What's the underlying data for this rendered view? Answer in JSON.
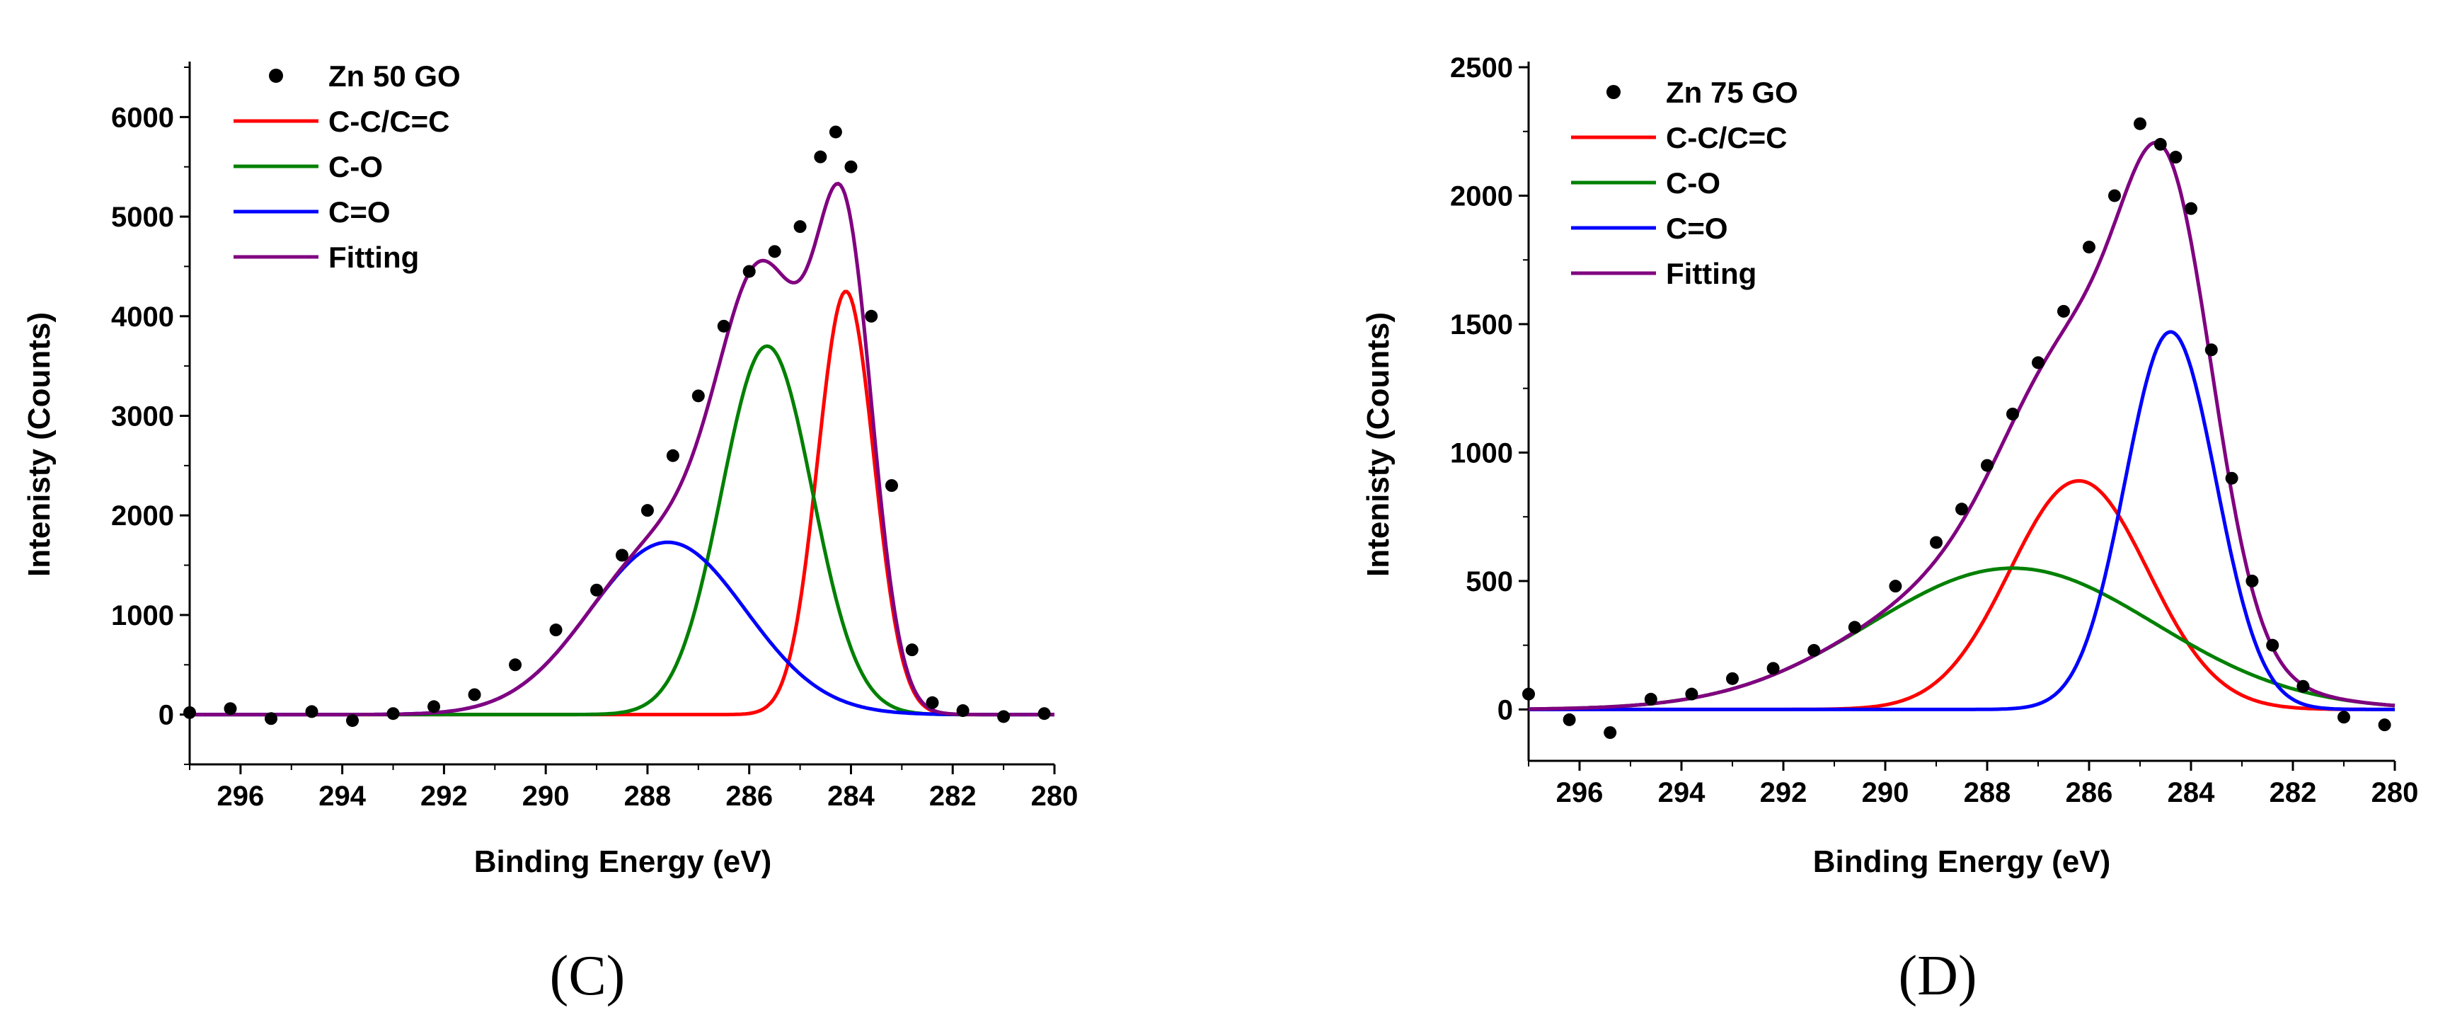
{
  "chart_data": [
    {
      "type": "line",
      "panel_label": "(C)",
      "title": "",
      "xlabel": "Binding Energy (eV)",
      "ylabel": "Intenisty (Counts)",
      "xlim": [
        297,
        280
      ],
      "ylim": [
        -500,
        6500
      ],
      "x_ticks": [
        296,
        294,
        292,
        290,
        288,
        286,
        284,
        282,
        280
      ],
      "y_ticks": [
        0,
        1000,
        2000,
        3000,
        4000,
        5000,
        6000
      ],
      "legend_position": "top-left",
      "grid": false,
      "series": [
        {
          "name": "Zn 50 GO",
          "kind": "scatter",
          "color": "#000000",
          "x": [
            297,
            296.2,
            295.4,
            294.6,
            293.8,
            293,
            292.2,
            291.4,
            290.6,
            289.8,
            289.0,
            288.5,
            288.0,
            287.5,
            287.0,
            286.5,
            286.0,
            285.5,
            285.0,
            284.6,
            284.3,
            284.0,
            283.6,
            283.2,
            282.8,
            282.4,
            281.8,
            281.0,
            280.2
          ],
          "y": [
            20,
            60,
            -40,
            30,
            -60,
            10,
            80,
            200,
            500,
            850,
            1250,
            1600,
            2050,
            2600,
            3200,
            3900,
            4450,
            4650,
            4900,
            5600,
            5850,
            5500,
            4000,
            2300,
            650,
            120,
            40,
            -20,
            10
          ]
        },
        {
          "name": "C-C/C=C",
          "kind": "peak",
          "color": "#ff0000",
          "center": 284.1,
          "amplitude": 4250,
          "fwhm": 1.3
        },
        {
          "name": "C-O",
          "kind": "peak",
          "color": "#008000",
          "center": 285.65,
          "amplitude": 3700,
          "fwhm": 2.1
        },
        {
          "name": "C=O",
          "kind": "peak",
          "color": "#0000ff",
          "center": 287.6,
          "amplitude": 1730,
          "fwhm": 3.6
        },
        {
          "name": "Fitting",
          "kind": "fit",
          "color": "#800080",
          "components": [
            "C-C/C=C",
            "C-O",
            "C=O"
          ]
        }
      ]
    },
    {
      "type": "line",
      "panel_label": "(D)",
      "title": "",
      "xlabel": "Binding Energy (eV)",
      "ylabel": "Intenisty (Counts)",
      "xlim": [
        297,
        280
      ],
      "ylim": [
        -200,
        2500
      ],
      "x_ticks": [
        296,
        294,
        292,
        290,
        288,
        286,
        284,
        282,
        280
      ],
      "y_ticks": [
        0,
        500,
        1000,
        1500,
        2000,
        2500
      ],
      "legend_position": "top-left",
      "grid": false,
      "series": [
        {
          "name": "Zn 75 GO",
          "kind": "scatter",
          "color": "#000000",
          "x": [
            297,
            296.2,
            295.4,
            294.6,
            293.8,
            293,
            292.2,
            291.4,
            290.6,
            289.8,
            289.0,
            288.5,
            288.0,
            287.5,
            287.0,
            286.5,
            286.0,
            285.5,
            285.0,
            284.6,
            284.3,
            284.0,
            283.6,
            283.2,
            282.8,
            282.4,
            281.8,
            281.0,
            280.2
          ],
          "y": [
            60,
            -40,
            -90,
            40,
            60,
            120,
            160,
            230,
            320,
            480,
            650,
            780,
            950,
            1150,
            1350,
            1550,
            1800,
            2000,
            2280,
            2200,
            2150,
            1950,
            1400,
            900,
            500,
            250,
            90,
            -30,
            -60
          ]
        },
        {
          "name": "C-C/C=C",
          "kind": "peak",
          "color": "#ff0000",
          "center": 286.2,
          "amplitude": 890,
          "fwhm": 3.2
        },
        {
          "name": "C-O",
          "kind": "peak",
          "color": "#008000",
          "center": 287.5,
          "amplitude": 550,
          "fwhm": 6.6
        },
        {
          "name": "C=O",
          "kind": "peak",
          "color": "#0000ff",
          "center": 284.4,
          "amplitude": 1470,
          "fwhm": 2.1
        },
        {
          "name": "Fitting",
          "kind": "fit",
          "color": "#800080",
          "components": [
            "C-C/C=C",
            "C-O",
            "C=O"
          ]
        }
      ]
    }
  ]
}
